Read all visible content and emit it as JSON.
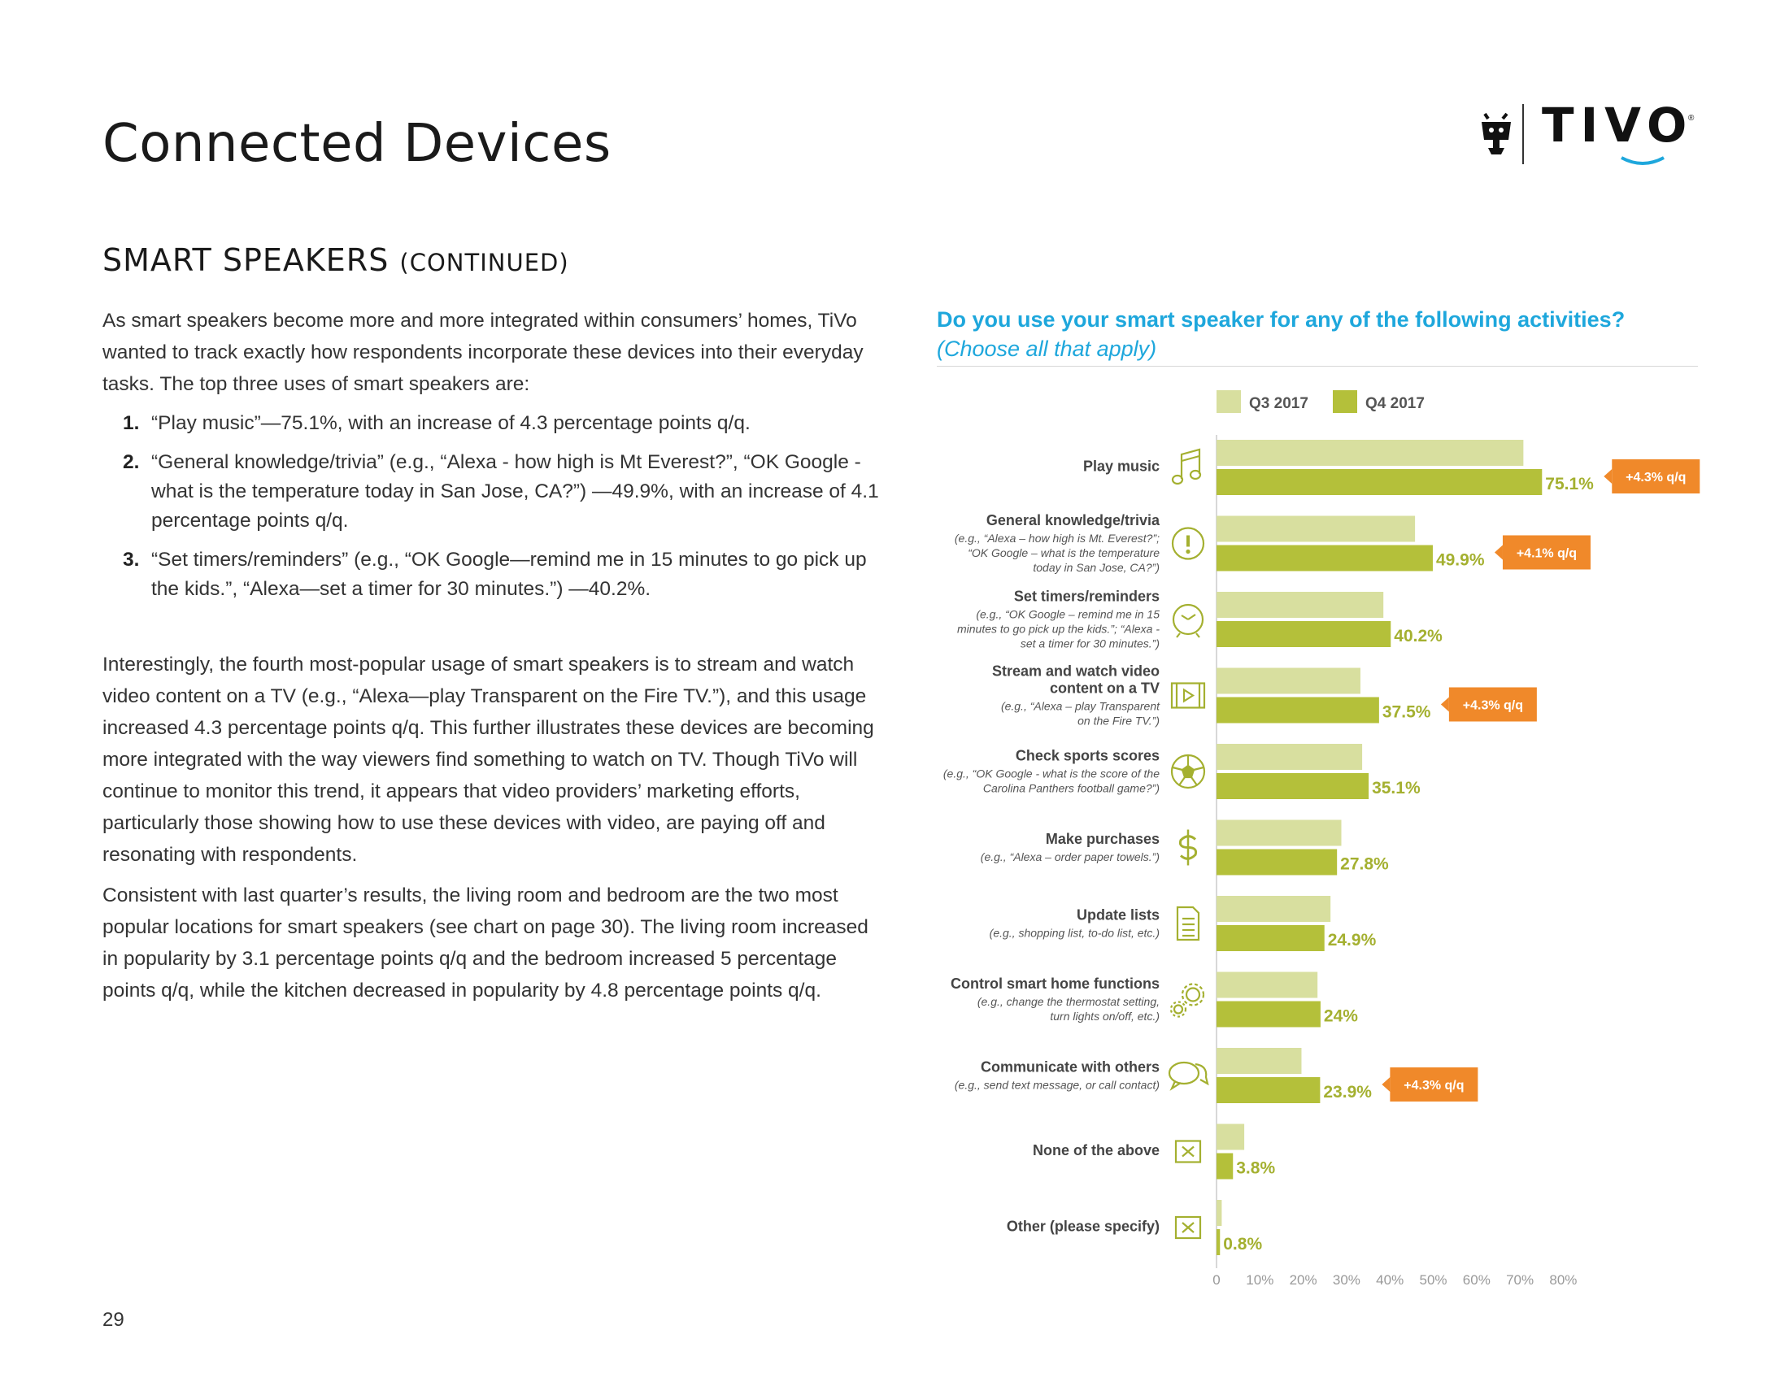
{
  "page": {
    "title": "Connected Devices",
    "logo_text": "TIVO",
    "logo_registered": "®",
    "section_title": "SMART SPEAKERS",
    "section_title_suffix": "(CONTINUED)",
    "intro": "As smart speakers become more and more integrated within consumers’ homes, TiVo wanted to track exactly how respondents incorporate these devices into their everyday tasks. The top three uses of smart speakers are:",
    "list": [
      {
        "num": "1.",
        "text": "“Play music”—75.1%, with an increase of 4.3 percentage points q/q."
      },
      {
        "num": "2.",
        "text": "“General knowledge/trivia” (e.g., “Alexa - how high is Mt Everest?”, “OK Google - what is the temperature today in San Jose, CA?”) —49.9%, with an increase of 4.1 percentage points q/q."
      },
      {
        "num": "3.",
        "text": "“Set timers/reminders” (e.g., “OK Google—remind me in 15 minutes to go pick up the kids.”, “Alexa—set a timer for 30 minutes.”) —40.2%."
      }
    ],
    "paragraph2": "Interestingly, the fourth most-popular usage of smart speakers is to stream and watch video content on a TV (e.g., “Alexa—play Transparent on the Fire TV.”), and this usage increased 4.3 percentage points q/q. This further illustrates these devices are becoming more integrated with the way viewers find something to watch on TV. Though TiVo will continue to monitor this trend, it appears that video providers’ marketing efforts, particularly those showing how to use these devices with video, are paying off and resonating with respondents.",
    "paragraph3": "Consistent with last quarter’s results, the living room and bedroom are the two most popular locations for smart speakers (see chart on page 30). The living room increased in popularity by 3.1 percentage points q/q and the bedroom increased 5 percentage points q/q, while the kitchen decreased in popularity by 4.8 percentage points q/q.",
    "page_number": "29"
  },
  "chart_data": {
    "type": "bar",
    "orientation": "horizontal",
    "title": "Do you use your smart speaker for any of the following activities?",
    "subtitle": "(Choose all that apply)",
    "legend_position": "top",
    "xlim": [
      0,
      80
    ],
    "x_ticks": [
      "0",
      "10%",
      "20%",
      "30%",
      "40%",
      "50%",
      "60%",
      "70%",
      "80%"
    ],
    "colors": {
      "q3": "#d8df9f",
      "q4": "#b4c03a",
      "change": "#f0892a",
      "value_label": "#a4b030"
    },
    "series": [
      {
        "name": "Q3 2017",
        "values": [
          70.8,
          45.8,
          38.5,
          33.2,
          33.6,
          28.8,
          26.3,
          23.3,
          19.6,
          6.4,
          1.2
        ]
      },
      {
        "name": "Q4 2017",
        "values": [
          75.1,
          49.9,
          40.2,
          37.5,
          35.1,
          27.8,
          24.9,
          24.0,
          23.9,
          3.8,
          0.8
        ]
      }
    ],
    "value_labels": [
      "75.1%",
      "49.9%",
      "40.2%",
      "37.5%",
      "35.1%",
      "27.8%",
      "24.9%",
      "24%",
      "23.9%",
      "3.8%",
      "0.8%"
    ],
    "categories": [
      {
        "label": "Play music",
        "example": [],
        "icon": "music-note-icon",
        "change": "+4.3% q/q"
      },
      {
        "label": "General knowledge/trivia",
        "example": [
          "(e.g., “Alexa – how high is Mt. Everest?”;",
          "“OK Google – what is the temperature",
          "today in San Jose, CA?”)"
        ],
        "icon": "exclamation-icon",
        "change": "+4.1% q/q"
      },
      {
        "label": "Set timers/reminders",
        "example": [
          "(e.g., “OK Google – remind me in 15",
          "minutes to go pick up the kids.”; “Alexa -",
          "set a timer for 30 minutes.”)"
        ],
        "icon": "clock-icon",
        "change": ""
      },
      {
        "label": "Stream and watch video",
        "label2": "content on a TV",
        "example": [
          "(e.g., “Alexa – play Transparent",
          "on the Fire TV.”)"
        ],
        "icon": "video-play-icon",
        "change": "+4.3% q/q"
      },
      {
        "label": "Check sports scores",
        "example": [
          "(e.g., “OK Google - what is the score of the",
          "Carolina Panthers football game?”)"
        ],
        "icon": "soccer-ball-icon",
        "change": ""
      },
      {
        "label": "Make purchases",
        "example": [
          "(e.g., “Alexa – order paper towels.”)"
        ],
        "icon": "dollar-icon",
        "change": ""
      },
      {
        "label": "Update lists",
        "example": [
          "(e.g., shopping list, to-do list, etc.)"
        ],
        "icon": "list-document-icon",
        "change": ""
      },
      {
        "label": "Control smart home functions",
        "example": [
          "(e.g., change the thermostat setting,",
          "turn lights on/off, etc.)"
        ],
        "icon": "gears-icon",
        "change": ""
      },
      {
        "label": "Communicate with others",
        "example": [
          "(e.g., send text message, or call contact)"
        ],
        "icon": "speech-bubbles-icon",
        "change": "+4.3% q/q"
      },
      {
        "label": "None of the above",
        "example": [],
        "icon": "x-box-icon",
        "change": ""
      },
      {
        "label": "Other (please specify)",
        "example": [],
        "icon": "x-box-icon",
        "change": ""
      }
    ]
  }
}
